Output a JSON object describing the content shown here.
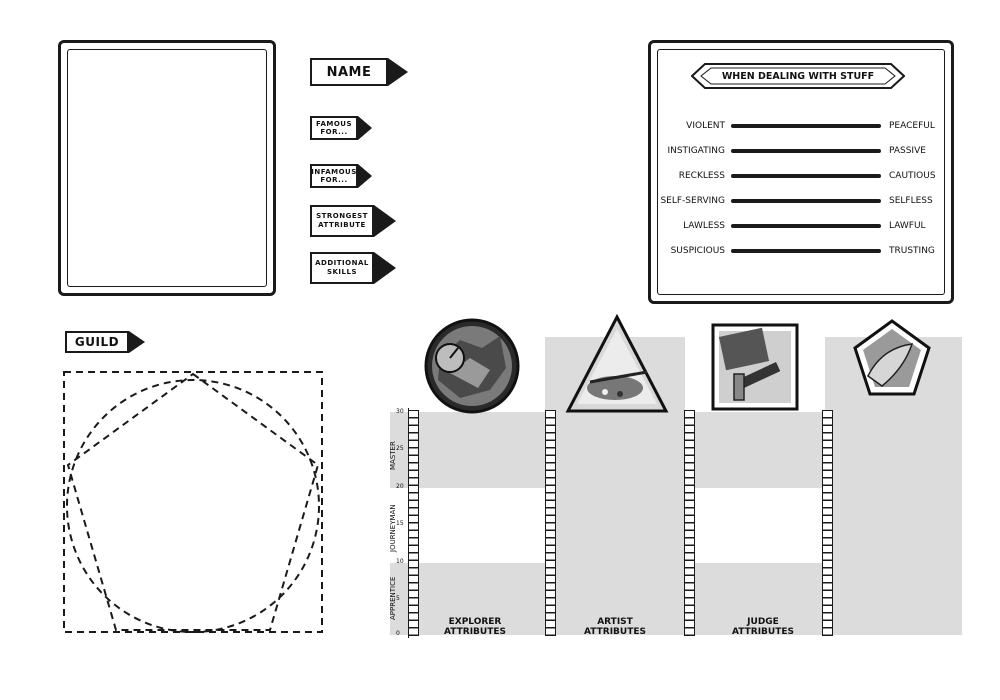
{
  "tags": {
    "name": "NAME",
    "famous": "FAMOUS FOR...",
    "infamous": "INFAMOUS FOR...",
    "strongest": "STRONGEST ATTRIBUTE",
    "skills": "ADDITIONAL SKILLS",
    "guild": "GUILD"
  },
  "dealing": {
    "title": "WHEN DEALING WITH STUFF",
    "rows": [
      {
        "left": "VIOLENT",
        "right": "PEACEFUL"
      },
      {
        "left": "INSTIGATING",
        "right": "PASSIVE"
      },
      {
        "left": "RECKLESS",
        "right": "CAUTIOUS"
      },
      {
        "left": "SELF-SERVING",
        "right": "SELFLESS"
      },
      {
        "left": "LAWLESS",
        "right": "LAWFUL"
      },
      {
        "left": "SUSPICIOUS",
        "right": "TRUSTING"
      }
    ]
  },
  "ranks": [
    "MASTER",
    "JOURNEYMAN",
    "APPRENTICE"
  ],
  "ticks": [
    "30",
    "25",
    "20",
    "15",
    "10",
    "5",
    "0"
  ],
  "columns": [
    {
      "label": "EXPLORER ATTRIBUTES",
      "icon": "compass-map-icon"
    },
    {
      "label": "ARTIST ATTRIBUTES",
      "icon": "paint-palette-icon"
    },
    {
      "label": "JUDGE ATTRIBUTES",
      "icon": "gavel-book-icon"
    }
  ],
  "fourth_icon": "scroll-pentagon-icon",
  "colors": {
    "ink": "#1a1a1a",
    "band": "#dcdcdc"
  }
}
